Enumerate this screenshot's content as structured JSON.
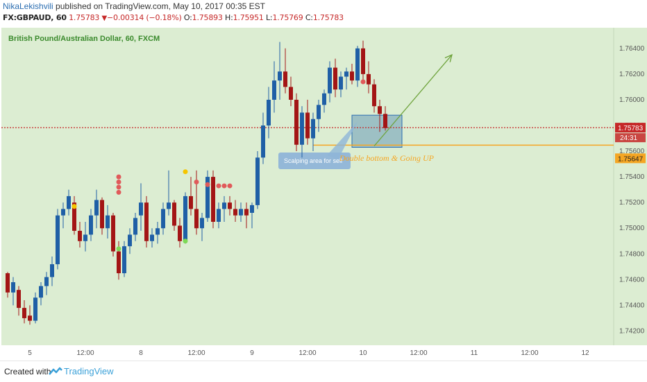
{
  "header": {
    "author": "NikaLekishvili",
    "published_text": "published on TradingView.com, May 10, 2017 00:35 EST",
    "symbol": "FX:GBPAUD, 60",
    "last": "1.75783",
    "change_arrow": "▼",
    "change": "−0.00314 (−0.18%)",
    "open_label": "O:",
    "open": "1.75893",
    "high_label": "H:",
    "high": "1.75951",
    "low_label": "L:",
    "low": "1.75769",
    "close_label": "C:",
    "close": "1.75783"
  },
  "footer": {
    "created_with": "Created with",
    "brand": "TradingView"
  },
  "colors": {
    "background": "#dcedd2",
    "up": "#1f5fa6",
    "down": "#a31515",
    "price_line": "#c62828",
    "support_line": "#f5a623",
    "arrow": "#6ea33c",
    "box": "#6a9ab8",
    "sell_marker": "#e05a5a",
    "buy_marker": "#7ed957",
    "neutral_marker": "#f5c500"
  },
  "chart_data": {
    "type": "candlestick",
    "title": "British Pound/Australian Dollar, 60, FXCM",
    "ylim": [
      1.741,
      1.7655
    ],
    "y_ticks": [
      "1.76400",
      "1.76200",
      "1.76000",
      "1.75800",
      "1.75600",
      "1.75400",
      "1.75200",
      "1.75000",
      "1.74800",
      "1.74600",
      "1.74400",
      "1.74200"
    ],
    "x_ticks": [
      {
        "label": "5",
        "bar": 4
      },
      {
        "label": "12:00",
        "bar": 14
      },
      {
        "label": "8",
        "bar": 24
      },
      {
        "label": "12:00",
        "bar": 34
      },
      {
        "label": "9",
        "bar": 44
      },
      {
        "label": "12:00",
        "bar": 54
      },
      {
        "label": "10",
        "bar": 64
      },
      {
        "label": "12:00",
        "bar": 74
      },
      {
        "label": "11",
        "bar": 84
      },
      {
        "label": "12:00",
        "bar": 94
      },
      {
        "label": "12",
        "bar": 104
      }
    ],
    "candles": [
      [
        1.7465,
        1.7466,
        1.7446,
        1.745
      ],
      [
        1.745,
        1.7462,
        1.744,
        1.7458
      ],
      [
        1.7452,
        1.7455,
        1.7432,
        1.7438
      ],
      [
        1.7438,
        1.7444,
        1.7426,
        1.743
      ],
      [
        1.7432,
        1.744,
        1.7425,
        1.7428
      ],
      [
        1.7428,
        1.745,
        1.7426,
        1.7446
      ],
      [
        1.7446,
        1.7458,
        1.744,
        1.7455
      ],
      [
        1.7455,
        1.7466,
        1.7448,
        1.7462
      ],
      [
        1.7462,
        1.7478,
        1.7455,
        1.7472
      ],
      [
        1.7472,
        1.7515,
        1.7468,
        1.751
      ],
      [
        1.751,
        1.752,
        1.75,
        1.7515
      ],
      [
        1.7515,
        1.753,
        1.751,
        1.7525
      ],
      [
        1.752,
        1.7525,
        1.7495,
        1.7498
      ],
      [
        1.7498,
        1.7505,
        1.7485,
        1.749
      ],
      [
        1.749,
        1.7505,
        1.7482,
        1.7495
      ],
      [
        1.7495,
        1.7515,
        1.749,
        1.751
      ],
      [
        1.751,
        1.753,
        1.75,
        1.7522
      ],
      [
        1.7522,
        1.7524,
        1.7495,
        1.75
      ],
      [
        1.75,
        1.7518,
        1.7492,
        1.751
      ],
      [
        1.751,
        1.7512,
        1.7478,
        1.7482
      ],
      [
        1.7482,
        1.749,
        1.746,
        1.7465
      ],
      [
        1.7465,
        1.749,
        1.7462,
        1.7486
      ],
      [
        1.7486,
        1.75,
        1.748,
        1.7495
      ],
      [
        1.7495,
        1.7512,
        1.749,
        1.7508
      ],
      [
        1.751,
        1.7535,
        1.7498,
        1.752
      ],
      [
        1.752,
        1.7525,
        1.7485,
        1.749
      ],
      [
        1.749,
        1.75,
        1.7485,
        1.7495
      ],
      [
        1.7495,
        1.7505,
        1.7488,
        1.75
      ],
      [
        1.75,
        1.752,
        1.7495,
        1.7515
      ],
      [
        1.7515,
        1.7545,
        1.751,
        1.752
      ],
      [
        1.752,
        1.7522,
        1.7498,
        1.7502
      ],
      [
        1.7502,
        1.7508,
        1.7485,
        1.749
      ],
      [
        1.749,
        1.7528,
        1.7488,
        1.7525
      ],
      [
        1.7525,
        1.754,
        1.751,
        1.7515
      ],
      [
        1.7515,
        1.7545,
        1.7495,
        1.75
      ],
      [
        1.75,
        1.7512,
        1.749,
        1.7508
      ],
      [
        1.7508,
        1.7545,
        1.7505,
        1.754
      ],
      [
        1.754,
        1.7545,
        1.75,
        1.7505
      ],
      [
        1.7505,
        1.752,
        1.75,
        1.7515
      ],
      [
        1.7515,
        1.7525,
        1.7505,
        1.752
      ],
      [
        1.752,
        1.7525,
        1.751,
        1.7515
      ],
      [
        1.7515,
        1.7522,
        1.7505,
        1.751
      ],
      [
        1.751,
        1.752,
        1.7505,
        1.7515
      ],
      [
        1.7515,
        1.752,
        1.75,
        1.751
      ],
      [
        1.7512,
        1.752,
        1.75,
        1.7518
      ],
      [
        1.7518,
        1.756,
        1.7515,
        1.7555
      ],
      [
        1.7555,
        1.759,
        1.755,
        1.758
      ],
      [
        1.758,
        1.761,
        1.757,
        1.76
      ],
      [
        1.76,
        1.763,
        1.759,
        1.7615
      ],
      [
        1.7615,
        1.7645,
        1.76,
        1.7622
      ],
      [
        1.7622,
        1.764,
        1.7605,
        1.761
      ],
      [
        1.761,
        1.7618,
        1.7595,
        1.76
      ],
      [
        1.76,
        1.7605,
        1.756,
        1.7565
      ],
      [
        1.7565,
        1.7595,
        1.7555,
        1.759
      ],
      [
        1.759,
        1.76,
        1.7565,
        1.757
      ],
      [
        1.757,
        1.759,
        1.756,
        1.7585
      ],
      [
        1.7585,
        1.76,
        1.7575,
        1.7596
      ],
      [
        1.7596,
        1.7608,
        1.759,
        1.7605
      ],
      [
        1.7605,
        1.763,
        1.7598,
        1.7625
      ],
      [
        1.7625,
        1.7632,
        1.7602,
        1.7608
      ],
      [
        1.7608,
        1.7622,
        1.7602,
        1.7618
      ],
      [
        1.7618,
        1.7625,
        1.7608,
        1.7622
      ],
      [
        1.7622,
        1.7628,
        1.7612,
        1.7615
      ],
      [
        1.7615,
        1.7642,
        1.761,
        1.764
      ],
      [
        1.764,
        1.7646,
        1.7615,
        1.762
      ],
      [
        1.762,
        1.763,
        1.7605,
        1.7612
      ],
      [
        1.7612,
        1.7616,
        1.759,
        1.7595
      ],
      [
        1.7595,
        1.76,
        1.7575,
        1.7589
      ],
      [
        1.7589,
        1.7595,
        1.7576,
        1.7578
      ]
    ],
    "current_price": {
      "value": 1.75783,
      "label": "1.75783",
      "countdown": "24:31"
    },
    "support_line": {
      "value": 1.75647,
      "label": "1.75647"
    },
    "buy_zone": {
      "x_from_bar": 62,
      "x_to_bar": 71,
      "y_from": 1.7563,
      "y_to": 1.7588
    },
    "arrow": {
      "from": {
        "bar": 66,
        "value": 1.7564
      },
      "to": {
        "bar": 80,
        "value": 1.7635
      }
    },
    "annotations": [
      {
        "text": "Scalping area for sell",
        "kind": "callout",
        "bar": 49,
        "value": 1.756
      },
      {
        "text": "Double bottom & Going UP",
        "kind": "label",
        "bar": 58,
        "value": 1.7559
      }
    ],
    "markers": {
      "sell": [
        [
          20,
          1.754
        ],
        [
          20,
          1.7536
        ],
        [
          20,
          1.7532
        ],
        [
          20,
          1.7528
        ],
        [
          34,
          1.7536
        ],
        [
          36,
          1.7534
        ],
        [
          38,
          1.7533
        ],
        [
          39,
          1.7533
        ],
        [
          40,
          1.7533
        ],
        [
          64,
          1.7614
        ]
      ],
      "buy": [
        [
          20,
          1.7484
        ],
        [
          32,
          1.749
        ]
      ],
      "neutral": [
        [
          12,
          1.7517
        ],
        [
          32,
          1.7544
        ]
      ]
    }
  }
}
